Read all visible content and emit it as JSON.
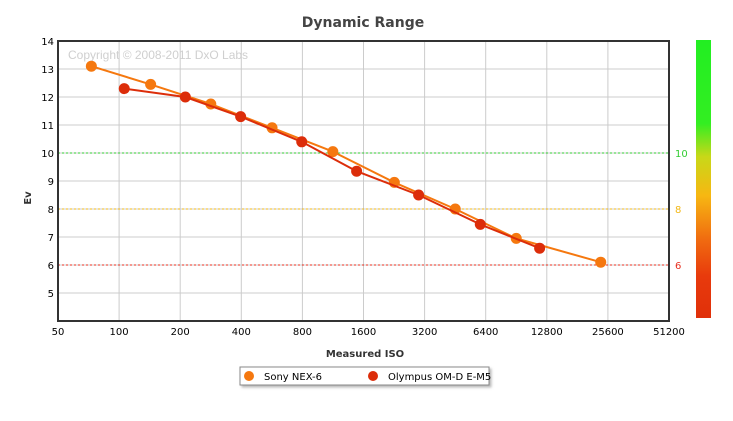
{
  "colors": {
    "sony": "#f5780f",
    "olympus": "#dc2d0a",
    "grid": "#cccccc",
    "green_ref": "#33cc33",
    "yellow_ref": "#f2b818",
    "red_ref": "#e83020"
  },
  "chart_data": {
    "type": "line",
    "title": "Dynamic Range",
    "xlabel": "Measured ISO",
    "ylabel": "Ev",
    "watermark": "Copyright © 2008-2011 DxO Labs",
    "x_scale": "log2",
    "x_ticks": [
      "50",
      "100",
      "200",
      "400",
      "800",
      "1600",
      "3200",
      "6400",
      "12800",
      "25600",
      "51200"
    ],
    "xlim": [
      50,
      51200
    ],
    "ylim": [
      4,
      14
    ],
    "y_ticks": [
      "5",
      "6",
      "7",
      "8",
      "9",
      "10",
      "11",
      "12",
      "13",
      "14"
    ],
    "grid": true,
    "legend_position": "bottom-center",
    "reference_lines": [
      {
        "y": 10,
        "label": "10",
        "color_key": "green_ref"
      },
      {
        "y": 8,
        "label": "8",
        "color_key": "yellow_ref"
      },
      {
        "y": 6,
        "label": "6",
        "color_key": "red_ref"
      }
    ],
    "series": [
      {
        "name": "Sony NEX-6",
        "color_key": "sony",
        "x": [
          73,
          143,
          283,
          567,
          1130,
          2270,
          4530,
          9050,
          23600
        ],
        "y": [
          13.1,
          12.45,
          11.75,
          10.9,
          10.05,
          8.95,
          8.0,
          6.95,
          6.1
        ]
      },
      {
        "name": "Olympus OM-D E-M5",
        "color_key": "olympus",
        "x": [
          106,
          212,
          397,
          794,
          1480,
          2990,
          6020,
          11800
        ],
        "y": [
          12.3,
          12.0,
          11.3,
          10.4,
          9.35,
          8.5,
          7.45,
          6.6
        ]
      }
    ]
  }
}
